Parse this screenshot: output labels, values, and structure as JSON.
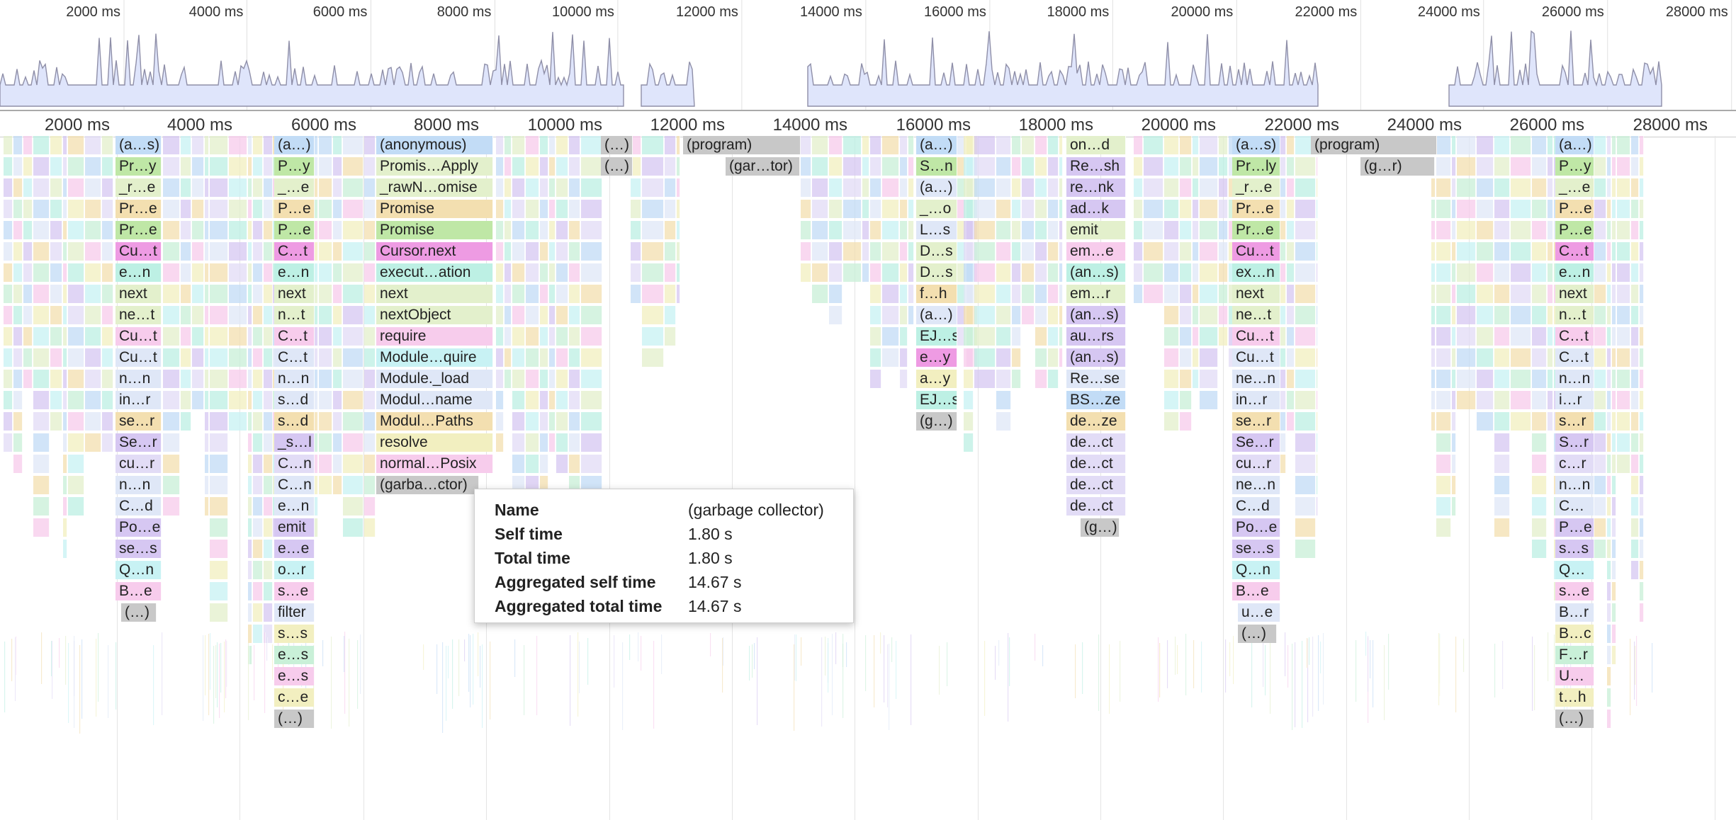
{
  "overview": {
    "tick_labels": [
      "2000 ms",
      "4000 ms",
      "6000 ms",
      "8000 ms",
      "10000 ms",
      "12000 ms",
      "14000 ms",
      "16000 ms",
      "18000 ms",
      "20000 ms",
      "22000 ms",
      "24000 ms",
      "26000 ms",
      "28000 ms"
    ]
  },
  "ruler": {
    "tick_labels": [
      "2000 ms",
      "4000 ms",
      "6000 ms",
      "8000 ms",
      "10000 ms",
      "12000 ms",
      "14000 ms",
      "16000 ms",
      "18000 ms",
      "20000 ms",
      "22000 ms",
      "24000 ms",
      "26000 ms",
      "28000 ms"
    ]
  },
  "colors": {
    "lightgreen": "#e3f0cc",
    "green": "#bfe7a6",
    "blue": "#c2dcf6",
    "purple": "#d6c7f2",
    "pink": "#f7ccec",
    "magenta": "#ee9be3",
    "teal": "#bdf0e4",
    "cyan": "#c8f2f4",
    "yellow": "#f2efc0",
    "orange": "#f3dfb0",
    "gray": "#c8c8c8",
    "lightblue": "#dfe7f7",
    "lavender": "#e2dcf6",
    "mint": "#c9f0d8"
  },
  "columns": [
    {
      "id": "c1",
      "labels": [
        "(a…s)",
        "Pr…y",
        "_r…e",
        "Pr…e",
        "Pr…e",
        "Cu…t",
        "e…n",
        "next",
        "ne…t",
        "Cu…t",
        "Cu…t",
        "n…n",
        "in…r",
        "se…r",
        "Se…r",
        "cu…r",
        "n…n",
        "C…d",
        "Po…e",
        "se…s",
        "Q…n",
        "B…e",
        "(…)"
      ]
    },
    {
      "id": "c2",
      "labels": [
        "(a…)",
        "P…y",
        "_…e",
        "P…e",
        "P…e",
        "C…t",
        "e…n",
        "next",
        "n…t",
        "C…t",
        "C…t",
        "n…n",
        "s…d",
        "s…d",
        "_s…l",
        "C…n",
        "C…n",
        "e…n",
        "emit",
        "e…e",
        "o…r",
        "s…e",
        "filter",
        "s…s",
        "e…s",
        "e…s",
        "c…e",
        "(…)"
      ]
    },
    {
      "id": "c3",
      "labels": [
        "(anonymous)",
        "Promis…Apply",
        "_rawN…omise",
        "Promise",
        "Promise",
        "Cursor.next",
        "execut…ation",
        "next",
        "nextObject",
        "require",
        "Module…quire",
        "Module._load",
        "Modul…name",
        "Modul…Paths",
        "resolve",
        "normal…Posix",
        "(garba…ctor)"
      ]
    },
    {
      "id": "c4",
      "labels": [
        "(…)",
        "(…)"
      ]
    },
    {
      "id": "c5",
      "labels": [
        "(program)",
        "(gar…tor)"
      ]
    },
    {
      "id": "c6",
      "labels": [
        "(a…)",
        "S…n",
        "(a…)",
        "_…o",
        "L…s",
        "D…s",
        "D…s",
        "f…h",
        "(a…)",
        "EJ…s",
        "e…y",
        "a…y",
        "EJ…s",
        "(g…)"
      ]
    },
    {
      "id": "c7",
      "labels": [
        "on…d",
        "Re…sh",
        "re…nk",
        "ad…k",
        "emit",
        "em…e",
        "(an…s)",
        "em…r",
        "(an…s)",
        "au…rs",
        "(an…s)",
        "Re…se",
        "BS…ze",
        "de…ze",
        "de…ct",
        "de…ct",
        "de…ct",
        "de…ct",
        "(g…)"
      ]
    },
    {
      "id": "c8",
      "labels": [
        "(a…s)",
        "Pr…ly",
        "_r…e",
        "Pr…e",
        "Pr…e",
        "Cu…t",
        "ex…n",
        "next",
        "ne…t",
        "Cu…t",
        "Cu…t",
        "ne…n",
        "in…r",
        "se…r",
        "Se…r",
        "cu…r",
        "ne…n",
        "C…d",
        "Po…e",
        "se…s",
        "Q…n",
        "B…e",
        "u…e",
        "(…)"
      ]
    },
    {
      "id": "c9",
      "labels": [
        "(program)",
        "(g…r)"
      ]
    },
    {
      "id": "c10",
      "labels": [
        "(a…)",
        "P…y",
        "_…e",
        "P…e",
        "P…e",
        "C…t",
        "e…n",
        "next",
        "n…t",
        "C…t",
        "C…t",
        "n…n",
        "i…r",
        "s…r",
        "S…r",
        "c…r",
        "n…n",
        "C…",
        "P…e",
        "s…s",
        "Q…",
        "s…e",
        "B…r",
        "B…c",
        "F…r",
        "U…",
        "t…h",
        "(…)"
      ]
    }
  ],
  "tooltip": {
    "rows": [
      {
        "key": "Name",
        "value": "(garbage collector)"
      },
      {
        "key": "Self time",
        "value": "1.80 s"
      },
      {
        "key": "Total time",
        "value": "1.80 s"
      },
      {
        "key": "Aggregated self time",
        "value": "14.67 s"
      },
      {
        "key": "Aggregated total time",
        "value": "14.67 s"
      }
    ]
  }
}
